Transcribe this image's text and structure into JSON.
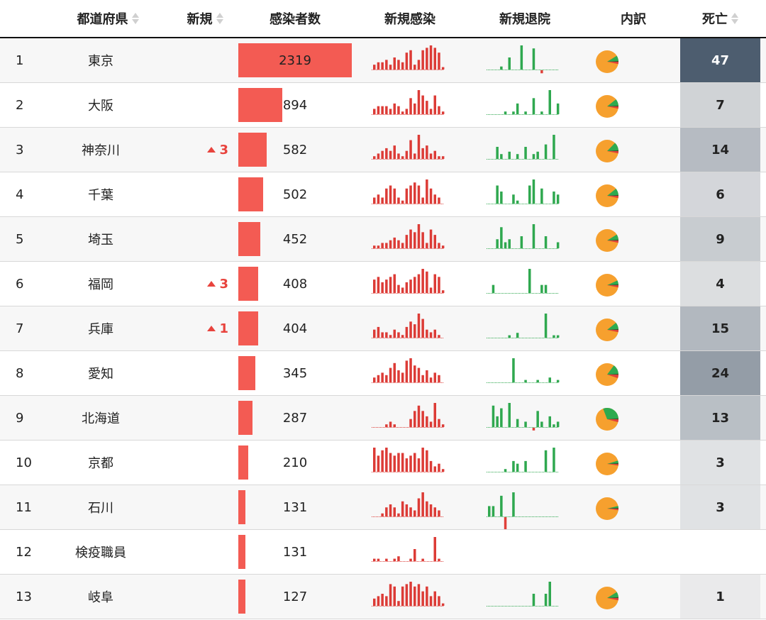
{
  "headers": {
    "prefecture": "都道府県",
    "new": "新規",
    "cases": "感染者数",
    "new_cases": "新規感染",
    "new_discharged": "新規退院",
    "breakdown": "内訳",
    "deaths": "死亡"
  },
  "colors": {
    "case_bar": "#f35b53",
    "spark_cases": "#dc3b36",
    "spark_discharge": "#2fa84f",
    "pie_orange": "#f6a02e",
    "pie_green": "#2eaa4f",
    "pie_red": "#e0403a",
    "pie_dark": "#222222"
  },
  "rows": [
    {
      "rank": "1",
      "prefecture": "東京",
      "up": "",
      "cases": 2319,
      "cases_label": "2319",
      "deaths": 47,
      "deaths_label": "47",
      "spark_cases": [
        2,
        3,
        3,
        4,
        2,
        5,
        4,
        3,
        7,
        8,
        2,
        4,
        8,
        9,
        10,
        9,
        7,
        1
      ],
      "spark_discharge": [
        0,
        0,
        0,
        1,
        0,
        4,
        0,
        0,
        8,
        0,
        0,
        7,
        0,
        -1,
        0,
        0,
        0,
        0
      ],
      "pie": {
        "recovered": 0.08,
        "deaths": 0.03,
        "critical": 0.01
      }
    },
    {
      "rank": "2",
      "prefecture": "大阪",
      "up": "",
      "cases": 894,
      "cases_label": "894",
      "deaths": 7,
      "deaths_label": "7",
      "spark_cases": [
        2,
        3,
        3,
        3,
        2,
        4,
        3,
        1,
        2,
        6,
        4,
        9,
        7,
        5,
        2,
        7,
        3,
        1
      ],
      "spark_discharge": [
        0,
        0,
        0,
        0,
        1,
        0,
        1,
        4,
        0,
        1,
        0,
        6,
        0,
        1,
        0,
        9,
        0,
        4
      ],
      "pie": {
        "recovered": 0.1,
        "deaths": 0.03,
        "critical": 0.01
      }
    },
    {
      "rank": "3",
      "prefecture": "神奈川",
      "up": "3",
      "cases": 582,
      "cases_label": "582",
      "deaths": 14,
      "deaths_label": "14",
      "spark_cases": [
        1,
        2,
        3,
        4,
        3,
        5,
        2,
        1,
        3,
        7,
        2,
        9,
        4,
        5,
        2,
        3,
        1,
        1
      ],
      "spark_discharge": [
        0,
        0,
        5,
        2,
        0,
        3,
        0,
        2,
        0,
        5,
        0,
        2,
        3,
        0,
        6,
        0,
        10,
        0
      ],
      "pie": {
        "recovered": 0.12,
        "deaths": 0.03,
        "critical": 0.01
      }
    },
    {
      "rank": "4",
      "prefecture": "千葉",
      "up": "",
      "cases": 502,
      "cases_label": "502",
      "deaths": 6,
      "deaths_label": "6",
      "spark_cases": [
        2,
        3,
        2,
        5,
        6,
        5,
        2,
        1,
        5,
        6,
        7,
        6,
        2,
        8,
        5,
        3,
        2,
        0
      ],
      "spark_discharge": [
        0,
        0,
        6,
        4,
        0,
        0,
        3,
        1,
        0,
        0,
        6,
        8,
        0,
        5,
        0,
        0,
        4,
        3
      ],
      "pie": {
        "recovered": 0.1,
        "deaths": 0.03,
        "critical": 0.01
      }
    },
    {
      "rank": "5",
      "prefecture": "埼玉",
      "up": "",
      "cases": 452,
      "cases_label": "452",
      "deaths": 9,
      "deaths_label": "9",
      "spark_cases": [
        1,
        1,
        2,
        2,
        3,
        4,
        3,
        2,
        5,
        7,
        6,
        9,
        6,
        2,
        7,
        5,
        2,
        1
      ],
      "spark_discharge": [
        0,
        0,
        3,
        7,
        2,
        3,
        0,
        0,
        4,
        0,
        0,
        8,
        0,
        0,
        4,
        0,
        0,
        2
      ],
      "pie": {
        "recovered": 0.08,
        "deaths": 0.03,
        "critical": 0.01
      }
    },
    {
      "rank": "6",
      "prefecture": "福岡",
      "up": "3",
      "cases": 408,
      "cases_label": "408",
      "deaths": 4,
      "deaths_label": "4",
      "spark_cases": [
        5,
        6,
        4,
        5,
        6,
        7,
        3,
        2,
        4,
        5,
        6,
        7,
        9,
        8,
        2,
        7,
        6,
        1
      ],
      "spark_discharge": [
        0,
        3,
        0,
        0,
        0,
        0,
        0,
        0,
        0,
        0,
        9,
        0,
        0,
        3,
        3,
        0,
        0,
        0
      ],
      "pie": {
        "recovered": 0.06,
        "deaths": 0.03,
        "critical": 0.01
      }
    },
    {
      "rank": "7",
      "prefecture": "兵庫",
      "up": "1",
      "cases": 404,
      "cases_label": "404",
      "deaths": 15,
      "deaths_label": "15",
      "spark_cases": [
        3,
        4,
        2,
        2,
        1,
        3,
        2,
        1,
        4,
        6,
        5,
        9,
        7,
        3,
        2,
        3,
        1,
        0
      ],
      "spark_discharge": [
        0,
        0,
        0,
        0,
        0,
        1,
        0,
        2,
        0,
        0,
        0,
        0,
        0,
        0,
        10,
        0,
        1,
        1
      ],
      "pie": {
        "recovered": 0.1,
        "deaths": 0.03,
        "critical": 0.01
      }
    },
    {
      "rank": "8",
      "prefecture": "愛知",
      "up": "",
      "cases": 345,
      "cases_label": "345",
      "deaths": 24,
      "deaths_label": "24",
      "spark_cases": [
        2,
        3,
        4,
        3,
        6,
        8,
        5,
        4,
        9,
        10,
        7,
        6,
        3,
        5,
        2,
        4,
        3,
        0
      ],
      "spark_discharge": [
        0,
        0,
        0,
        0,
        0,
        0,
        10,
        0,
        0,
        1,
        0,
        0,
        1,
        0,
        0,
        2,
        0,
        1
      ],
      "pie": {
        "recovered": 0.14,
        "deaths": 0.05,
        "critical": 0.01
      }
    },
    {
      "rank": "9",
      "prefecture": "北海道",
      "up": "",
      "cases": 287,
      "cases_label": "287",
      "deaths": 13,
      "deaths_label": "13",
      "spark_cases": [
        0,
        0,
        0,
        1,
        2,
        1,
        0,
        0,
        0,
        3,
        6,
        8,
        6,
        4,
        2,
        9,
        3,
        1
      ],
      "spark_discharge": [
        0,
        8,
        4,
        7,
        0,
        9,
        0,
        3,
        0,
        2,
        0,
        -1,
        6,
        2,
        0,
        4,
        1,
        2
      ],
      "pie": {
        "recovered": 0.3,
        "deaths": 0.04,
        "critical": 0.01
      }
    },
    {
      "rank": "10",
      "prefecture": "京都",
      "up": "",
      "cases": 210,
      "cases_label": "210",
      "deaths": 3,
      "deaths_label": "3",
      "spark_cases": [
        9,
        6,
        8,
        9,
        7,
        6,
        7,
        7,
        5,
        6,
        7,
        5,
        9,
        8,
        4,
        2,
        3,
        1
      ],
      "spark_discharge": [
        0,
        0,
        0,
        0,
        1,
        0,
        4,
        3,
        0,
        4,
        0,
        0,
        0,
        0,
        8,
        0,
        9,
        0
      ],
      "pie": {
        "recovered": 0.04,
        "deaths": 0.02,
        "critical": 0.01
      }
    },
    {
      "rank": "11",
      "prefecture": "石川",
      "up": "",
      "cases": 131,
      "cases_label": "131",
      "deaths": 3,
      "deaths_label": "3",
      "spark_cases": [
        0,
        0,
        1,
        3,
        4,
        3,
        1,
        5,
        4,
        3,
        2,
        6,
        8,
        5,
        4,
        3,
        2,
        0
      ],
      "spark_discharge": [
        3,
        3,
        0,
        6,
        -4,
        0,
        7,
        0,
        0,
        0,
        0,
        0,
        0,
        0,
        0,
        0,
        0,
        0
      ],
      "pie": {
        "recovered": 0.03,
        "deaths": 0.02,
        "critical": 0.01
      }
    },
    {
      "rank": "12",
      "prefecture": "検疫職員",
      "up": "",
      "cases": 131,
      "cases_label": "131",
      "deaths": null,
      "deaths_label": "",
      "spark_cases": [
        1,
        1,
        0,
        1,
        0,
        1,
        2,
        0,
        0,
        1,
        5,
        0,
        1,
        0,
        0,
        10,
        1,
        0
      ],
      "spark_discharge": null,
      "pie": null
    },
    {
      "rank": "13",
      "prefecture": "岐阜",
      "up": "",
      "cases": 127,
      "cases_label": "127",
      "deaths": 1,
      "deaths_label": "1",
      "spark_cases": [
        3,
        4,
        5,
        4,
        9,
        8,
        2,
        8,
        9,
        10,
        8,
        9,
        6,
        8,
        4,
        6,
        4,
        1
      ],
      "spark_discharge": [
        0,
        0,
        0,
        0,
        0,
        0,
        0,
        0,
        0,
        0,
        0,
        4,
        0,
        0,
        4,
        8,
        0,
        0
      ],
      "pie": {
        "recovered": 0.08,
        "deaths": 0.03,
        "critical": 0.01
      }
    }
  ]
}
